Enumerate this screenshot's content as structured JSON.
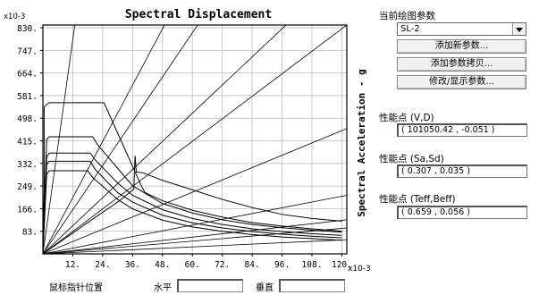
{
  "chart_data": {
    "type": "line",
    "title": "Spectral Displacement",
    "xlabel": "",
    "ylabel": "Spectral Acceleration - g",
    "x_exponent": "x10-3",
    "y_exponent": "x10-3",
    "xlim": [
      0,
      122
    ],
    "ylim": [
      0,
      840
    ],
    "x_ticks": [
      "12.",
      "24.",
      "36.",
      "48.",
      "60.",
      "72.",
      "84.",
      "96.",
      "108.",
      "120."
    ],
    "y_ticks": [
      "83.",
      "166.",
      "249.",
      "332.",
      "415.",
      "498.",
      "581.",
      "664.",
      "747.",
      "830."
    ],
    "grid": true,
    "radial_lines": [
      {
        "x": [
          0,
          122
        ],
        "y": [
          0,
          8000
        ]
      },
      {
        "x": [
          0,
          122
        ],
        "y": [
          0,
          2100
        ]
      },
      {
        "x": [
          0,
          122
        ],
        "y": [
          0,
          1650
        ]
      },
      {
        "x": [
          0,
          122
        ],
        "y": [
          0,
          1050
        ]
      },
      {
        "x": [
          0,
          122
        ],
        "y": [
          0,
          840
        ]
      },
      {
        "x": [
          0,
          122
        ],
        "y": [
          0,
          460
        ]
      },
      {
        "x": [
          0,
          122
        ],
        "y": [
          0,
          215
        ]
      },
      {
        "x": [
          0,
          122
        ],
        "y": [
          0,
          125
        ]
      },
      {
        "x": [
          0,
          122
        ],
        "y": [
          0,
          95
        ]
      },
      {
        "x": [
          0,
          122
        ],
        "y": [
          0,
          52
        ]
      }
    ],
    "series": [
      {
        "x": [
          0,
          0.5,
          0.5,
          1.5,
          2.5,
          24.5,
          25.5,
          39.5,
          41,
          48,
          60,
          72,
          84,
          96,
          108,
          120
        ],
        "y": [
          0,
          230,
          540,
          548,
          555,
          555,
          535,
          250,
          225,
          195,
          160,
          135,
          115,
          102,
          92,
          83
        ]
      },
      {
        "x": [
          0,
          1.5,
          2.5,
          20,
          22,
          36,
          48,
          60,
          72,
          84,
          96,
          108,
          120
        ],
        "y": [
          0,
          420,
          430,
          430,
          400,
          250,
          185,
          150,
          125,
          108,
          96,
          87,
          80
        ]
      },
      {
        "x": [
          0,
          1.5,
          2.5,
          19,
          21,
          30,
          36,
          48,
          60,
          72,
          84,
          96,
          108,
          120
        ],
        "y": [
          0,
          355,
          370,
          370,
          345,
          260,
          215,
          162,
          130,
          108,
          92,
          82,
          74,
          68
        ]
      },
      {
        "x": [
          0,
          1.5,
          2.5,
          19,
          21,
          30,
          36,
          48,
          60,
          72,
          84,
          96,
          108,
          120
        ],
        "y": [
          0,
          328,
          340,
          340,
          310,
          225,
          190,
          142,
          114,
          95,
          82,
          72,
          65,
          59
        ]
      },
      {
        "x": [
          0,
          1.5,
          2.5,
          18,
          20,
          30,
          36,
          48,
          60,
          72,
          84,
          96,
          108,
          120
        ],
        "y": [
          0,
          292,
          305,
          305,
          280,
          200,
          165,
          124,
          99,
          83,
          71,
          62,
          56,
          50
        ]
      },
      {
        "x": [
          0,
          18,
          30,
          36.5,
          37,
          37.5,
          40,
          48,
          60,
          72,
          84,
          96,
          108,
          120
        ],
        "y": [
          0,
          115,
          190,
          238,
          360,
          300,
          298,
          270,
          235,
          200,
          170,
          145,
          130,
          120
        ]
      }
    ],
    "status_bar": {
      "cursor_label": "鼠标指针位置",
      "horizontal_label": "水平",
      "vertical_label": "垂直"
    }
  },
  "panel": {
    "params_label": "当前绘图参数",
    "selected_param": "SL-2",
    "add_new_label": "添加新参数...",
    "add_copy_label": "添加参数拷贝...",
    "modify_label": "修改/显示参数...",
    "perf_vd_label": "性能点 (V,D)",
    "perf_vd_value": "( 101050.42 , -0.051 )",
    "perf_sasd_label": "性能点 (Sa,Sd)",
    "perf_sasd_value": "( 0.307 , 0.035 )",
    "perf_teff_label": "性能点 (Teff,Beff)",
    "perf_teff_value": "( 0.659 , 0.056 )"
  },
  "colors": {
    "grid": "#bdbdbd",
    "line": "#000000",
    "field_border": "#777777"
  }
}
